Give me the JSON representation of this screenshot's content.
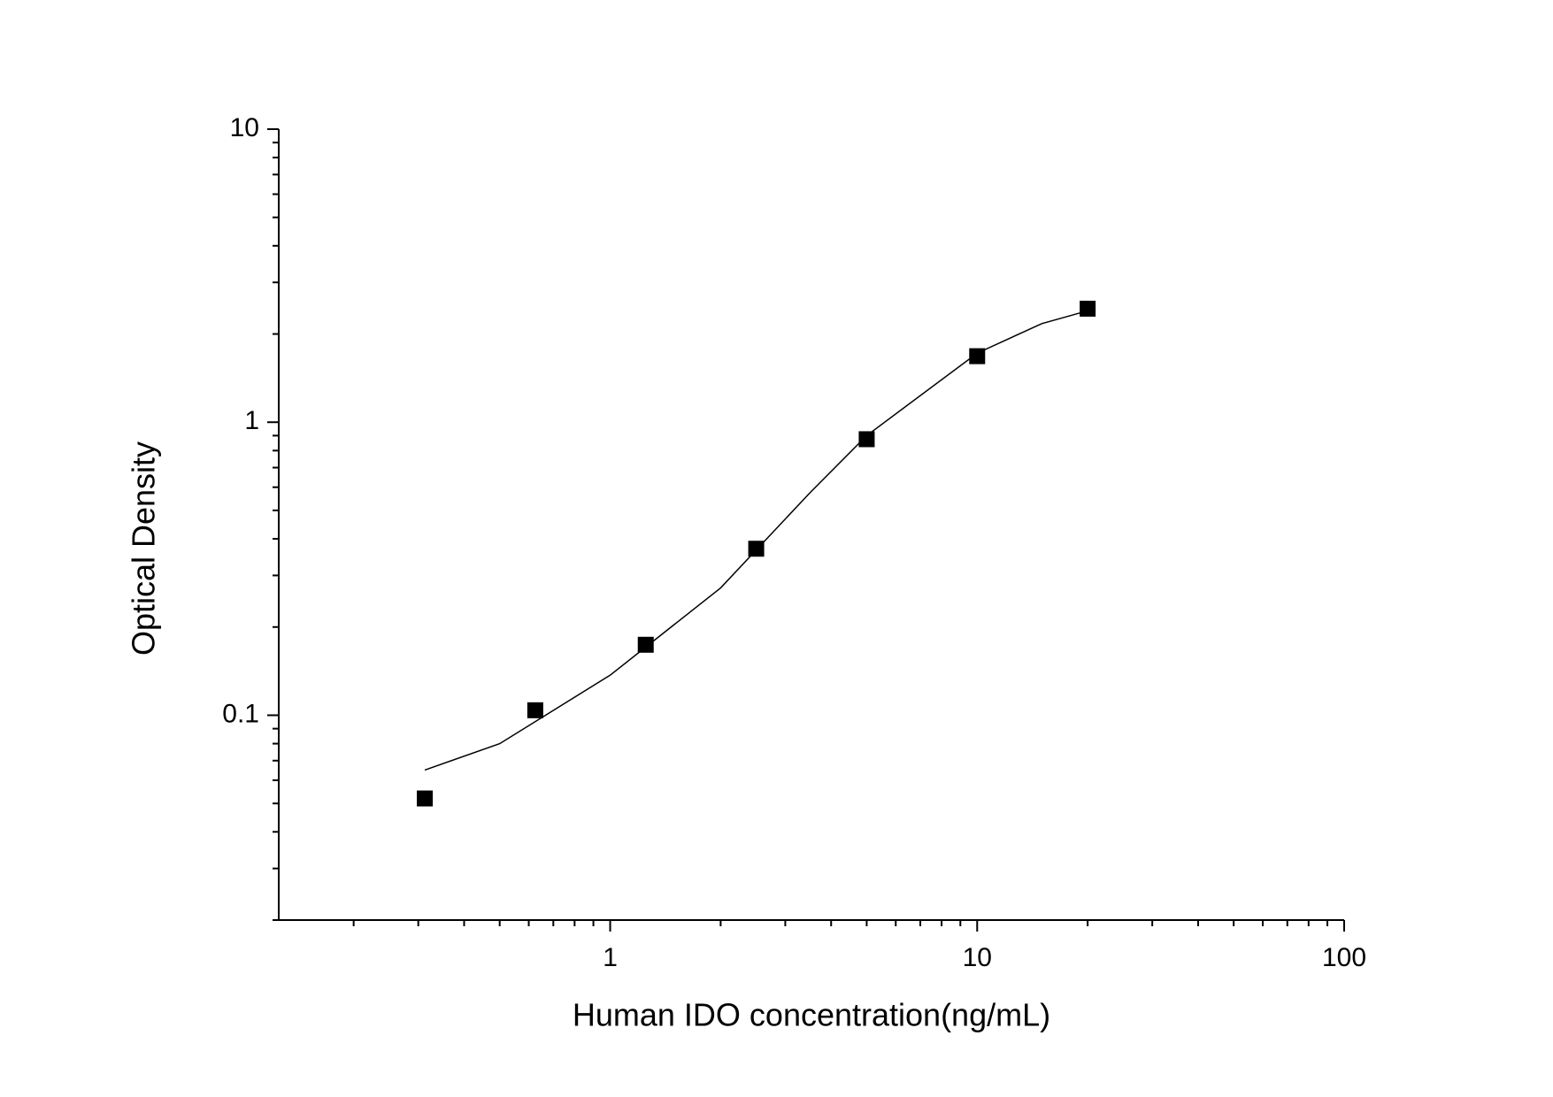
{
  "chart_data": {
    "type": "scatter",
    "x_label": "Human IDO concentration(ng/mL)",
    "y_label": "Optical Density",
    "xscale": "log",
    "yscale": "log",
    "xlim": [
      0.125,
      100
    ],
    "xticks": [
      1,
      10,
      100
    ],
    "ylim": [
      0.02,
      10
    ],
    "yticks": [
      0.1,
      1,
      10
    ],
    "series": [
      {
        "kind": "points",
        "color": "#000000",
        "x": [
          0.3125,
          0.625,
          1.25,
          2.5,
          5,
          10,
          20
        ],
        "values": [
          0.052,
          0.104,
          0.174,
          0.37,
          0.875,
          1.68,
          2.44
        ]
      },
      {
        "kind": "line",
        "color": "#000000",
        "x": [
          0.3125,
          0.5,
          1,
          2,
          3.5,
          5,
          10,
          15,
          20
        ],
        "values": [
          0.065,
          0.08,
          0.137,
          0.272,
          0.574,
          0.9,
          1.72,
          2.17,
          2.4
        ]
      }
    ]
  }
}
